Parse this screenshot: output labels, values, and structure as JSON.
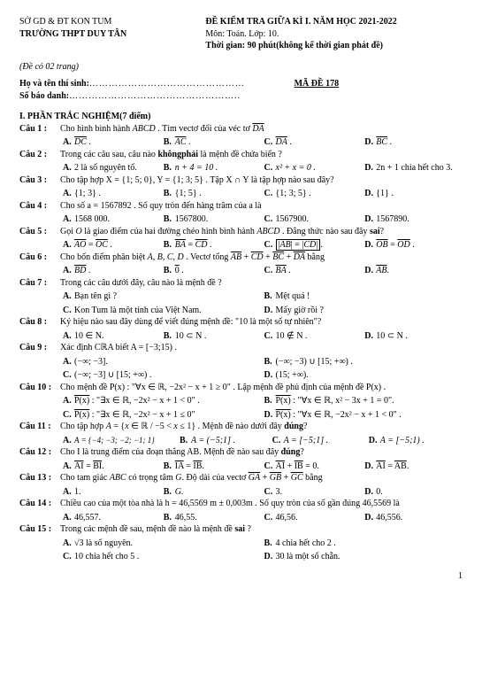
{
  "header": {
    "dept": "SỞ GD & ĐT KON TUM",
    "school": "TRƯỜNG THPT DUY TÂN",
    "title": "ĐỀ KIỂM TRA GIỮA KÌ I. NĂM HỌC 2021-2022",
    "subject": "Môn: Toán. Lớp: 10.",
    "time": "Thời gian: 90 phút(không kể thời gian phát đề)",
    "pages": "(Đề có 02 trang)",
    "name_label": "Họ và tên thí sinh:",
    "name_dots": "…………………………………………",
    "id_label": "Số báo danh:",
    "id_dots": "……………………………………………..",
    "code": "MÃ ĐỀ 178"
  },
  "section1": "I.      PHẦN TRẮC NGHIỆM(7 điểm)",
  "q1": {
    "label": "Câu 1 :",
    "text_a": "Cho hình bình hành ",
    "text_b": "ABCD",
    "text_c": " . Tìm vectơ đối của véc tơ ",
    "text_d": "DA",
    "A": "DC",
    "B": "AC",
    "C": "DA",
    "D": "BC"
  },
  "q2": {
    "label": "Câu 2 :",
    "text": "Trong các câu sau, câu nào khôngphải là mệnh đề  chứa biến ?",
    "A": "2  là số nguyên tố.",
    "B": "n + 4 = 10 .",
    "C": "x² + x = 0 .",
    "D": "2n + 1 chia hết cho 3."
  },
  "q3": {
    "label": "Câu 3 :",
    "text": "Cho tập hợp  X = {1; 5; 0}, Y = {1; 3; 5} . Tập  X ∩ Y là tập hợp nào sau đây?",
    "A": "{1; 3} .",
    "B": "{1; 5} .",
    "C": "{1; 3; 5} .",
    "D": "{1} ."
  },
  "q4": {
    "label": "Câu 4 :",
    "text": "Cho số  a = 1567892 . Số quy tròn đến hàng trăm  của a  là",
    "A": "1568 000.",
    "B": "1567800.",
    "C": "1567900.",
    "D": "1567890."
  },
  "q5": {
    "label": "Câu 5 :",
    "text": "Gọi O  là giao điểm của hai đường chéo hình bình hành  ABCD . Đẳng thức nào sau đây sai?",
    "A": "AO = OC .",
    "B": "BA = CD .",
    "C_box": "|AB| = |CD|.",
    "D": "OB = OD ."
  },
  "q6": {
    "label": "Câu 6 :",
    "text": "Cho bốn điểm phân biệt A, B, C, D . Vectơ tổng  AB + CD + BC + DA  bằng",
    "A": "BD .",
    "B": "0 .",
    "C": "BA .",
    "D": "AB."
  },
  "q7": {
    "label": "Câu 7 :",
    "text": "Trong các câu dưới đây, câu nào là mệnh đề ?",
    "A": "Bạn tên gì ?",
    "B": "Mệt quá !",
    "C": "Kon Tum là một tỉnh  của Việt Nam.",
    "D": "Mấy giờ rồi ?"
  },
  "q8": {
    "label": "Câu 8 :",
    "text": "Ký hiệu nào sau đây dùng để viết đúng mệnh đề: \"10 là một số tự nhiên\"?",
    "A": "10 ∈ N.",
    "B": "10 ⊂ N .",
    "C": "10 ∉ N .",
    "D": "10 ⊂ N ."
  },
  "q9": {
    "label": "Câu 9 :",
    "text": "Xác định  CℝA  biết  A = [−3;15) .",
    "A": "(−∞; −3].",
    "B": "(−∞; −3) ∪ [15; +∞) .",
    "C": "(−∞; −3] ∪ [15; +∞) .",
    "D": "(15; +∞)."
  },
  "q10": {
    "label": "Câu 10 :",
    "text": "Cho mệnh đề  P(x) : \"∀x ∈ ℝ, −2x² − x + 1 ≥ 0\" . Lập mệnh đề phủ định của mệnh đề  P(x) .",
    "A": "P(x) : \"∃x ∈ ℝ, −2x² − x + 1 < 0\"   .",
    "B": "P(x) : \"∀x ∈ ℝ, x² − 3x + 1 = 0\".",
    "C": "P(x) : \"∃x ∈ ℝ, −2x² − x + 1 ≤ 0\"",
    "D": "P(x) : \"∀x ∈ ℝ, −2x² − x + 1 < 0\" ."
  },
  "q11": {
    "label": "Câu 11 :",
    "text": "Cho tập hợp  A = {x ∈ ℝ / −5 < x ≤ 1}  . Mệnh đề nào dưới đây đúng?",
    "A": "A = {−4; −3; −2; −1; 1}",
    "B": "A = (−5;1] .",
    "C": "A = [−5;1] .",
    "D": "A = [−5;1) ."
  },
  "q12": {
    "label": "Câu 12 :",
    "text": "Cho I là trung điểm của đoạn thẳng AB. Mệnh đề nào sau đây đúng?",
    "A": "AI = BI.",
    "B": "IA = IB.",
    "C": "AI + IB = 0.",
    "D": "AI = AB."
  },
  "q13": {
    "label": "Câu 13 :",
    "text": "Cho tam giác  ABC  có trọng tâm  G.  Độ dài của vectơ  GA + GB + GC  bằng",
    "A": "1.",
    "B": "G.",
    "C": "3.",
    "D": "0."
  },
  "q14": {
    "label": "Câu 14 :",
    "text": "Chiều cao của một tòa nhà là  h = 46,5569 m  ±  0,003m . Số quy tròn của số gần đúng 46,5569 là",
    "A": "46,557.",
    "B": "46,55.",
    "C": "46,56.",
    "D": "46,556."
  },
  "q15": {
    "label": "Câu 15 :",
    "text": "Trong các mệnh đề sau, mệnh đề nào là mệnh đề sai ?",
    "A": "√3   là số nguyên.",
    "B": "4 chia hết cho 2 .",
    "C": "10 chia hết cho 5 .",
    "D": "30 là một số chẵn."
  },
  "pagenum": "1"
}
